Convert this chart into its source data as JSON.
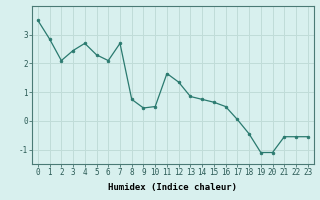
{
  "x": [
    0,
    1,
    2,
    3,
    4,
    5,
    6,
    7,
    8,
    9,
    10,
    11,
    12,
    13,
    14,
    15,
    16,
    17,
    18,
    19,
    20,
    21,
    22,
    23
  ],
  "y": [
    3.5,
    2.85,
    2.1,
    2.45,
    2.7,
    2.3,
    2.1,
    2.7,
    0.75,
    0.45,
    0.5,
    1.65,
    1.35,
    0.85,
    0.75,
    0.65,
    0.5,
    0.05,
    -0.45,
    -1.1,
    -1.1,
    -0.55,
    -0.55,
    -0.55
  ],
  "line_color": "#2a7a6f",
  "marker": "o",
  "marker_size": 2,
  "bg_color": "#d8f0ee",
  "grid_color": "#c0dcd8",
  "xlabel": "Humidex (Indice chaleur)",
  "xlim": [
    -0.5,
    23.5
  ],
  "ylim": [
    -1.5,
    4.0
  ],
  "yticks": [
    -1,
    0,
    1,
    2,
    3
  ],
  "xticks": [
    0,
    1,
    2,
    3,
    4,
    5,
    6,
    7,
    8,
    9,
    10,
    11,
    12,
    13,
    14,
    15,
    16,
    17,
    18,
    19,
    20,
    21,
    22,
    23
  ],
  "tick_fontsize": 5.5,
  "label_fontsize": 6.5
}
